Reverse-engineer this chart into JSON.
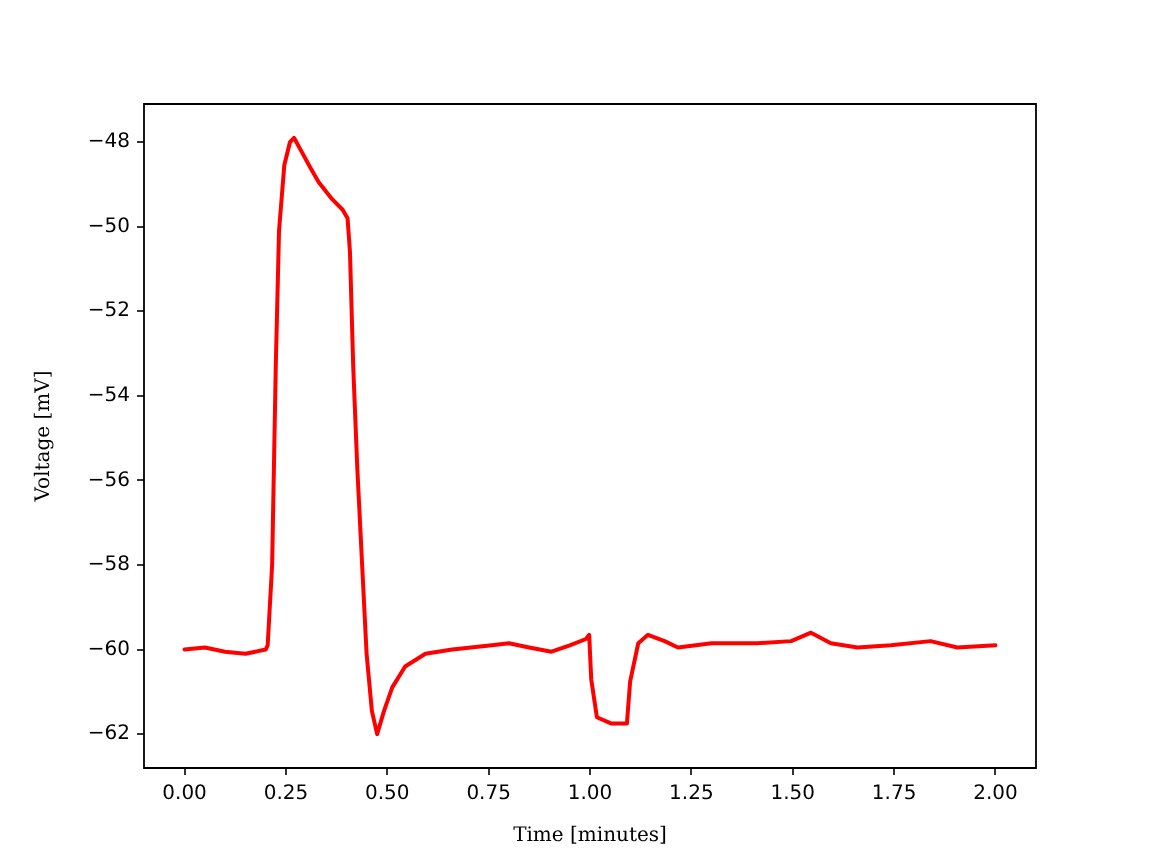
{
  "chart_data": {
    "type": "line",
    "xlabel": "Time [minutes]",
    "ylabel": "Voltage [mV]",
    "x": [
      0.0,
      0.05,
      0.1,
      0.15,
      0.2,
      0.205,
      0.216,
      0.225,
      0.233,
      0.246,
      0.26,
      0.27,
      0.29,
      0.31,
      0.331,
      0.364,
      0.39,
      0.402,
      0.408,
      0.416,
      0.426,
      0.438,
      0.449,
      0.462,
      0.475,
      0.492,
      0.512,
      0.544,
      0.594,
      0.66,
      0.758,
      0.8,
      0.85,
      0.905,
      0.95,
      0.99,
      0.998,
      1.003,
      1.017,
      1.053,
      1.091,
      1.099,
      1.119,
      1.143,
      1.184,
      1.217,
      1.3,
      1.414,
      1.496,
      1.545,
      1.594,
      1.66,
      1.742,
      1.84,
      1.906,
      2.0
    ],
    "series": [
      {
        "color": "#ff0000",
        "values": [
          -60.0,
          -59.95,
          -60.05,
          -60.1,
          -60.0,
          -59.9,
          -58.0,
          -53.3,
          -50.1,
          -48.55,
          -48.0,
          -47.9,
          -48.25,
          -48.6,
          -48.95,
          -49.35,
          -49.6,
          -49.8,
          -50.6,
          -53.3,
          -55.7,
          -58.0,
          -60.1,
          -61.45,
          -62.0,
          -61.45,
          -60.9,
          -60.4,
          -60.1,
          -60.0,
          -59.9,
          -59.85,
          -59.95,
          -60.05,
          -59.9,
          -59.75,
          -59.65,
          -60.7,
          -61.6,
          -61.75,
          -61.75,
          -60.75,
          -59.85,
          -59.65,
          -59.8,
          -59.95,
          -59.85,
          -59.85,
          -59.8,
          -59.6,
          -59.85,
          -59.95,
          -59.9,
          -59.8,
          -59.95,
          -59.9
        ]
      }
    ],
    "xlim": [
      -0.1,
      2.1
    ],
    "ylim": [
      -62.8,
      -47.1
    ],
    "xticks": [
      {
        "value": 0,
        "label": "0.00"
      },
      {
        "value": 0.25,
        "label": "0.25"
      },
      {
        "value": 0.5,
        "label": "0.50"
      },
      {
        "value": 0.75,
        "label": "0.75"
      },
      {
        "value": 1,
        "label": "1.00"
      },
      {
        "value": 1.25,
        "label": "1.25"
      },
      {
        "value": 1.5,
        "label": "1.50"
      },
      {
        "value": 1.75,
        "label": "1.75"
      },
      {
        "value": 2,
        "label": "2.00"
      }
    ],
    "yticks": [
      {
        "value": -62,
        "label": "−62"
      },
      {
        "value": -60,
        "label": "−60"
      },
      {
        "value": -58,
        "label": "−58"
      },
      {
        "value": -56,
        "label": "−56"
      },
      {
        "value": -54,
        "label": "−54"
      },
      {
        "value": -52,
        "label": "−52"
      },
      {
        "value": -50,
        "label": "−50"
      },
      {
        "value": -48,
        "label": "−48"
      }
    ],
    "marker": "none",
    "line_style": "solid"
  }
}
